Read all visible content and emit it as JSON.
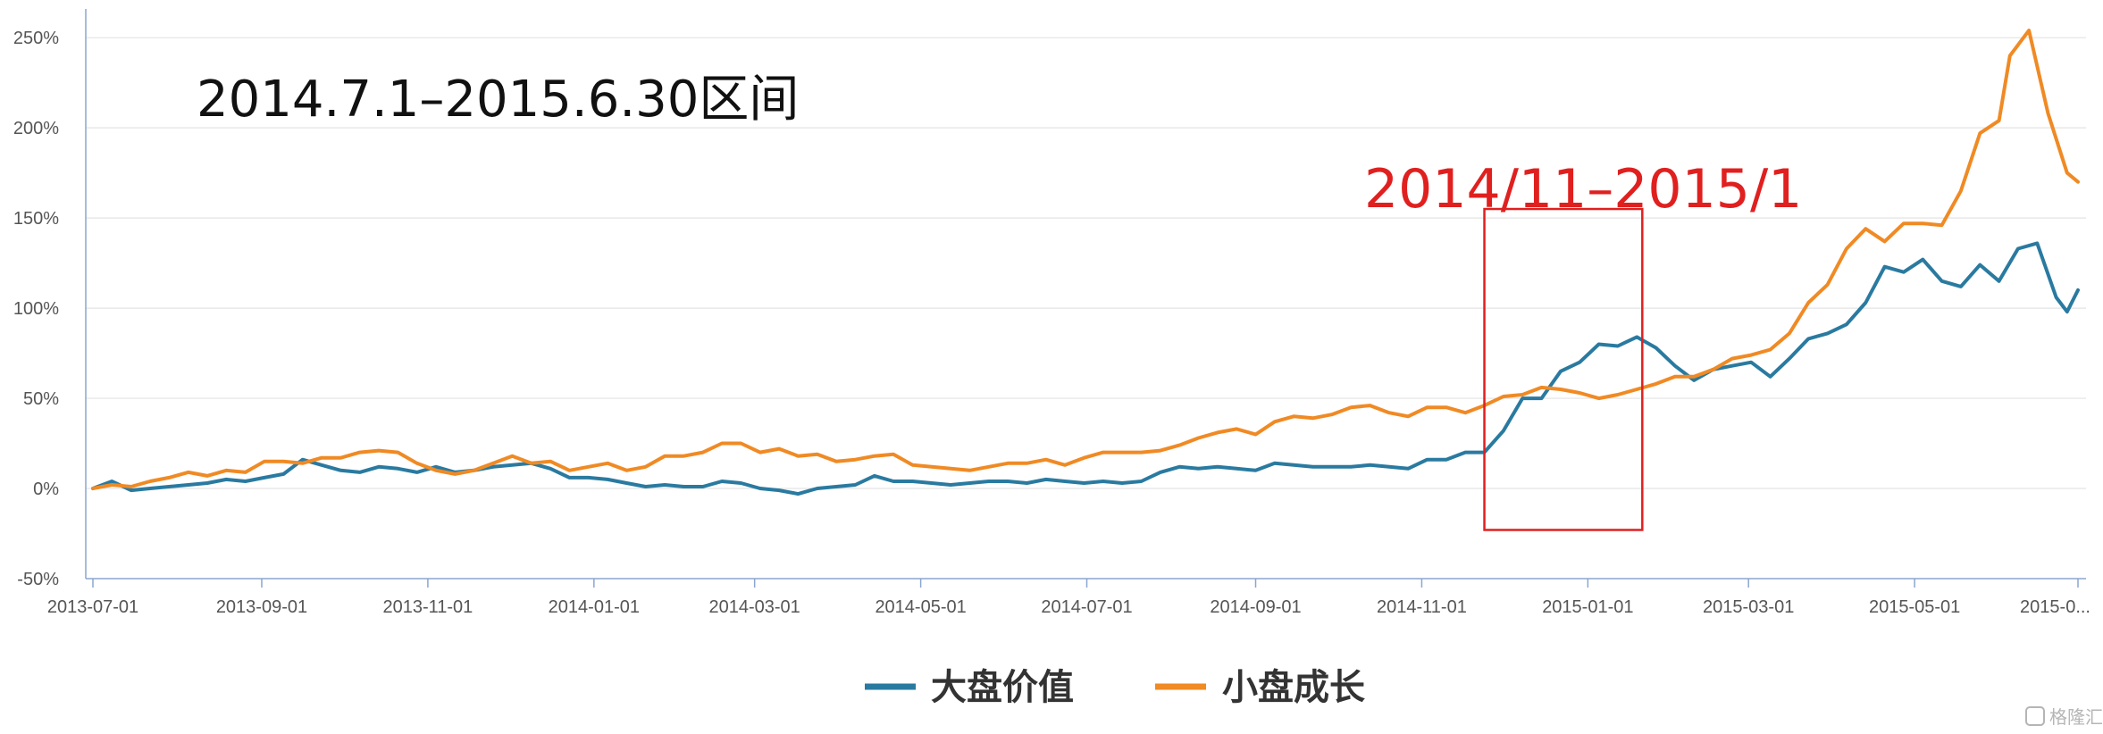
{
  "chart_data": {
    "type": "line",
    "title": "",
    "xlabel": "",
    "ylabel": "",
    "ylim": [
      -50,
      260
    ],
    "yticks": [
      {
        "value": 250,
        "label": "250%"
      },
      {
        "value": 200,
        "label": "200%"
      },
      {
        "value": 150,
        "label": "150%"
      },
      {
        "value": 100,
        "label": "100%"
      },
      {
        "value": 50,
        "label": "50%"
      },
      {
        "value": 0,
        "label": "0%"
      },
      {
        "value": -50,
        "label": "-50%"
      }
    ],
    "xlim": [
      "2013-07-01",
      "2015-06-30"
    ],
    "xticks": [
      {
        "date": "2013-07-01",
        "label": "2013-07-01"
      },
      {
        "date": "2013-09-01",
        "label": "2013-09-01"
      },
      {
        "date": "2013-11-01",
        "label": "2013-11-01"
      },
      {
        "date": "2014-01-01",
        "label": "2014-01-01"
      },
      {
        "date": "2014-03-01",
        "label": "2014-03-01"
      },
      {
        "date": "2014-05-01",
        "label": "2014-05-01"
      },
      {
        "date": "2014-07-01",
        "label": "2014-07-01"
      },
      {
        "date": "2014-09-01",
        "label": "2014-09-01"
      },
      {
        "date": "2014-11-01",
        "label": "2014-11-01"
      },
      {
        "date": "2015-01-01",
        "label": "2015-01-01"
      },
      {
        "date": "2015-03-01",
        "label": "2015-03-01"
      },
      {
        "date": "2015-05-01",
        "label": "2015-05-01"
      },
      {
        "date": "2015-06-30",
        "label": "2015-0..."
      }
    ],
    "grid": "horizontal",
    "legend_position": "bottom-center",
    "series": [
      {
        "name": "大盘价值",
        "color": "#2a7aa0",
        "points": [
          [
            "2013-07-01",
            0
          ],
          [
            "2013-07-08",
            4
          ],
          [
            "2013-07-15",
            -1
          ],
          [
            "2013-07-22",
            0
          ],
          [
            "2013-07-29",
            1
          ],
          [
            "2013-08-05",
            2
          ],
          [
            "2013-08-12",
            3
          ],
          [
            "2013-08-19",
            5
          ],
          [
            "2013-08-26",
            4
          ],
          [
            "2013-09-02",
            6
          ],
          [
            "2013-09-09",
            8
          ],
          [
            "2013-09-16",
            16
          ],
          [
            "2013-09-23",
            13
          ],
          [
            "2013-09-30",
            10
          ],
          [
            "2013-10-07",
            9
          ],
          [
            "2013-10-14",
            12
          ],
          [
            "2013-10-21",
            11
          ],
          [
            "2013-10-28",
            9
          ],
          [
            "2013-11-04",
            12
          ],
          [
            "2013-11-11",
            9
          ],
          [
            "2013-11-18",
            10
          ],
          [
            "2013-11-25",
            12
          ],
          [
            "2013-12-02",
            13
          ],
          [
            "2013-12-09",
            14
          ],
          [
            "2013-12-16",
            11
          ],
          [
            "2013-12-23",
            6
          ],
          [
            "2013-12-30",
            6
          ],
          [
            "2014-01-06",
            5
          ],
          [
            "2014-01-13",
            3
          ],
          [
            "2014-01-20",
            1
          ],
          [
            "2014-01-27",
            2
          ],
          [
            "2014-02-03",
            1
          ],
          [
            "2014-02-10",
            1
          ],
          [
            "2014-02-17",
            4
          ],
          [
            "2014-02-24",
            3
          ],
          [
            "2014-03-03",
            0
          ],
          [
            "2014-03-10",
            -1
          ],
          [
            "2014-03-17",
            -3
          ],
          [
            "2014-03-24",
            0
          ],
          [
            "2014-03-31",
            1
          ],
          [
            "2014-04-07",
            2
          ],
          [
            "2014-04-14",
            7
          ],
          [
            "2014-04-21",
            4
          ],
          [
            "2014-04-28",
            4
          ],
          [
            "2014-05-05",
            3
          ],
          [
            "2014-05-12",
            2
          ],
          [
            "2014-05-19",
            3
          ],
          [
            "2014-05-26",
            4
          ],
          [
            "2014-06-02",
            4
          ],
          [
            "2014-06-09",
            3
          ],
          [
            "2014-06-16",
            5
          ],
          [
            "2014-06-23",
            4
          ],
          [
            "2014-06-30",
            3
          ],
          [
            "2014-07-07",
            4
          ],
          [
            "2014-07-14",
            3
          ],
          [
            "2014-07-21",
            4
          ],
          [
            "2014-07-28",
            9
          ],
          [
            "2014-08-04",
            12
          ],
          [
            "2014-08-11",
            11
          ],
          [
            "2014-08-18",
            12
          ],
          [
            "2014-08-25",
            11
          ],
          [
            "2014-09-01",
            10
          ],
          [
            "2014-09-08",
            14
          ],
          [
            "2014-09-15",
            13
          ],
          [
            "2014-09-22",
            12
          ],
          [
            "2014-09-29",
            12
          ],
          [
            "2014-10-06",
            12
          ],
          [
            "2014-10-13",
            13
          ],
          [
            "2014-10-20",
            12
          ],
          [
            "2014-10-27",
            11
          ],
          [
            "2014-11-03",
            16
          ],
          [
            "2014-11-10",
            16
          ],
          [
            "2014-11-17",
            20
          ],
          [
            "2014-11-24",
            20
          ],
          [
            "2014-12-01",
            32
          ],
          [
            "2014-12-08",
            50
          ],
          [
            "2014-12-15",
            50
          ],
          [
            "2014-12-22",
            65
          ],
          [
            "2014-12-29",
            70
          ],
          [
            "2015-01-05",
            80
          ],
          [
            "2015-01-12",
            79
          ],
          [
            "2015-01-19",
            84
          ],
          [
            "2015-01-26",
            78
          ],
          [
            "2015-02-02",
            68
          ],
          [
            "2015-02-09",
            60
          ],
          [
            "2015-02-16",
            66
          ],
          [
            "2015-02-23",
            68
          ],
          [
            "2015-03-02",
            70
          ],
          [
            "2015-03-09",
            62
          ],
          [
            "2015-03-16",
            72
          ],
          [
            "2015-03-23",
            83
          ],
          [
            "2015-03-30",
            86
          ],
          [
            "2015-04-06",
            91
          ],
          [
            "2015-04-13",
            103
          ],
          [
            "2015-04-20",
            123
          ],
          [
            "2015-04-27",
            120
          ],
          [
            "2015-05-04",
            127
          ],
          [
            "2015-05-11",
            115
          ],
          [
            "2015-05-18",
            112
          ],
          [
            "2015-05-25",
            124
          ],
          [
            "2015-06-01",
            115
          ],
          [
            "2015-06-08",
            133
          ],
          [
            "2015-06-15",
            136
          ],
          [
            "2015-06-22",
            106
          ],
          [
            "2015-06-26",
            98
          ],
          [
            "2015-06-30",
            110
          ]
        ]
      },
      {
        "name": "小盘成长",
        "color": "#f08a24",
        "points": [
          [
            "2013-07-01",
            0
          ],
          [
            "2013-07-08",
            2
          ],
          [
            "2013-07-15",
            1
          ],
          [
            "2013-07-22",
            4
          ],
          [
            "2013-07-29",
            6
          ],
          [
            "2013-08-05",
            9
          ],
          [
            "2013-08-12",
            7
          ],
          [
            "2013-08-19",
            10
          ],
          [
            "2013-08-26",
            9
          ],
          [
            "2013-09-02",
            15
          ],
          [
            "2013-09-09",
            15
          ],
          [
            "2013-09-16",
            14
          ],
          [
            "2013-09-23",
            17
          ],
          [
            "2013-09-30",
            17
          ],
          [
            "2013-10-07",
            20
          ],
          [
            "2013-10-14",
            21
          ],
          [
            "2013-10-21",
            20
          ],
          [
            "2013-10-28",
            14
          ],
          [
            "2013-11-04",
            10
          ],
          [
            "2013-11-11",
            8
          ],
          [
            "2013-11-18",
            10
          ],
          [
            "2013-11-25",
            14
          ],
          [
            "2013-12-02",
            18
          ],
          [
            "2013-12-09",
            14
          ],
          [
            "2013-12-16",
            15
          ],
          [
            "2013-12-23",
            10
          ],
          [
            "2013-12-30",
            12
          ],
          [
            "2014-01-06",
            14
          ],
          [
            "2014-01-13",
            10
          ],
          [
            "2014-01-20",
            12
          ],
          [
            "2014-01-27",
            18
          ],
          [
            "2014-02-03",
            18
          ],
          [
            "2014-02-10",
            20
          ],
          [
            "2014-02-17",
            25
          ],
          [
            "2014-02-24",
            25
          ],
          [
            "2014-03-03",
            20
          ],
          [
            "2014-03-10",
            22
          ],
          [
            "2014-03-17",
            18
          ],
          [
            "2014-03-24",
            19
          ],
          [
            "2014-03-31",
            15
          ],
          [
            "2014-04-07",
            16
          ],
          [
            "2014-04-14",
            18
          ],
          [
            "2014-04-21",
            19
          ],
          [
            "2014-04-28",
            13
          ],
          [
            "2014-05-05",
            12
          ],
          [
            "2014-05-12",
            11
          ],
          [
            "2014-05-19",
            10
          ],
          [
            "2014-05-26",
            12
          ],
          [
            "2014-06-02",
            14
          ],
          [
            "2014-06-09",
            14
          ],
          [
            "2014-06-16",
            16
          ],
          [
            "2014-06-23",
            13
          ],
          [
            "2014-06-30",
            17
          ],
          [
            "2014-07-07",
            20
          ],
          [
            "2014-07-14",
            20
          ],
          [
            "2014-07-21",
            20
          ],
          [
            "2014-07-28",
            21
          ],
          [
            "2014-08-04",
            24
          ],
          [
            "2014-08-11",
            28
          ],
          [
            "2014-08-18",
            31
          ],
          [
            "2014-08-25",
            33
          ],
          [
            "2014-09-01",
            30
          ],
          [
            "2014-09-08",
            37
          ],
          [
            "2014-09-15",
            40
          ],
          [
            "2014-09-22",
            39
          ],
          [
            "2014-09-29",
            41
          ],
          [
            "2014-10-06",
            45
          ],
          [
            "2014-10-13",
            46
          ],
          [
            "2014-10-20",
            42
          ],
          [
            "2014-10-27",
            40
          ],
          [
            "2014-11-03",
            45
          ],
          [
            "2014-11-10",
            45
          ],
          [
            "2014-11-17",
            42
          ],
          [
            "2014-11-24",
            46
          ],
          [
            "2014-12-01",
            51
          ],
          [
            "2014-12-08",
            52
          ],
          [
            "2014-12-15",
            56
          ],
          [
            "2014-12-22",
            55
          ],
          [
            "2014-12-29",
            53
          ],
          [
            "2015-01-05",
            50
          ],
          [
            "2015-01-12",
            52
          ],
          [
            "2015-01-19",
            55
          ],
          [
            "2015-01-26",
            58
          ],
          [
            "2015-02-02",
            62
          ],
          [
            "2015-02-09",
            62
          ],
          [
            "2015-02-16",
            66
          ],
          [
            "2015-02-23",
            72
          ],
          [
            "2015-03-02",
            74
          ],
          [
            "2015-03-09",
            77
          ],
          [
            "2015-03-16",
            86
          ],
          [
            "2015-03-23",
            103
          ],
          [
            "2015-03-30",
            113
          ],
          [
            "2015-04-06",
            133
          ],
          [
            "2015-04-13",
            144
          ],
          [
            "2015-04-20",
            137
          ],
          [
            "2015-04-27",
            147
          ],
          [
            "2015-05-04",
            147
          ],
          [
            "2015-05-11",
            146
          ],
          [
            "2015-05-18",
            165
          ],
          [
            "2015-05-25",
            197
          ],
          [
            "2015-06-01",
            204
          ],
          [
            "2015-06-05",
            240
          ],
          [
            "2015-06-12",
            254
          ],
          [
            "2015-06-19",
            208
          ],
          [
            "2015-06-26",
            175
          ],
          [
            "2015-06-30",
            170
          ]
        ]
      }
    ],
    "annotations": [
      {
        "text": "2014.7.1–2015.6.30区间",
        "color": "#111111"
      },
      {
        "text": "2014/11–2015/1",
        "color": "#e0201f",
        "range": [
          "2014-11-24",
          "2015-01-21"
        ],
        "ylim": [
          -23,
          155
        ]
      }
    ]
  },
  "watermark": "格隆汇"
}
